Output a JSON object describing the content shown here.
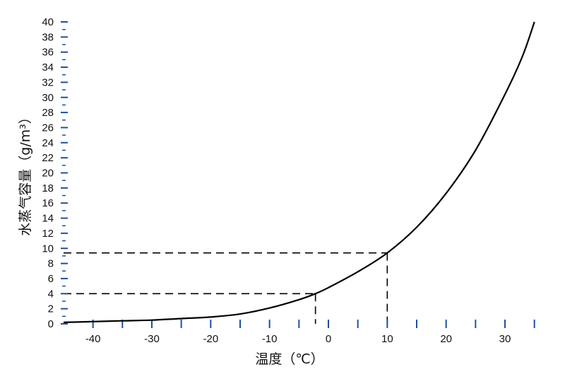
{
  "chart_data": {
    "type": "line",
    "title": "",
    "xlabel": "温度（℃）",
    "ylabel": "水蒸气容量（g/m³）",
    "xlim": [
      -45,
      36
    ],
    "ylim": [
      0,
      40
    ],
    "x_ticks": [
      "-40",
      "-30",
      "-20",
      "-10",
      "0",
      "10",
      "20",
      "30"
    ],
    "y_ticks": [
      "0",
      "2",
      "4",
      "6",
      "8",
      "10",
      "12",
      "14",
      "16",
      "18",
      "20",
      "22",
      "24",
      "26",
      "28",
      "30",
      "32",
      "34",
      "36",
      "38",
      "40"
    ],
    "grid": false,
    "legend": "none",
    "series": [
      {
        "x": [
          -45,
          -40,
          -35,
          -30,
          -25,
          -20,
          -15,
          -10,
          -5,
          -2.2,
          0,
          5,
          10,
          15,
          20,
          25,
          30,
          33,
          35
        ],
        "y": [
          0.2,
          0.3,
          0.4,
          0.5,
          0.7,
          0.9,
          1.3,
          2.1,
          3.2,
          4.0,
          4.8,
          6.9,
          9.4,
          12.8,
          17.3,
          23.0,
          30.4,
          35.5,
          40.0
        ]
      }
    ],
    "reference_lines": [
      {
        "x": -2.2,
        "y": 4.0
      },
      {
        "x": 10,
        "y": 9.4
      }
    ],
    "colors": {
      "curve": "#000000",
      "y_axis_gradient": [
        "#102a8c",
        "#1e78d8",
        "#1ec8f0"
      ],
      "x_axis_gradient": [
        "#102a8c",
        "#1ec8f0",
        "#1ec8b4",
        "#3caa3c",
        "#e6aa1e",
        "#e61e1e"
      ],
      "ticks": "#1e50a0"
    }
  }
}
